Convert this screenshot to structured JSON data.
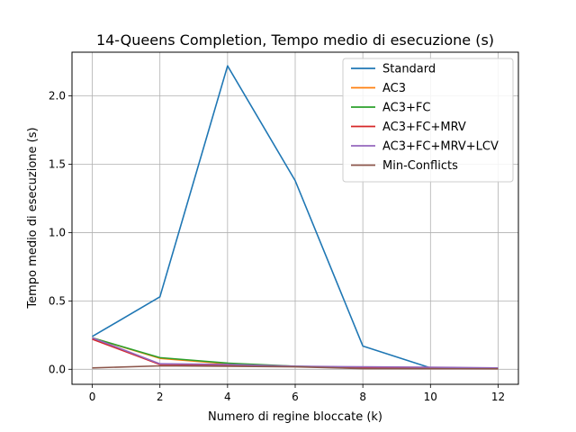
{
  "chart_data": {
    "type": "line",
    "title": "14-Queens Completion, Tempo medio di esecuzione (s)",
    "xlabel": "Numero di regine bloccate (k)",
    "ylabel": "Tempo medio di esecuzione (s)",
    "x": [
      0,
      2,
      4,
      6,
      8,
      10,
      12
    ],
    "xlim": [
      -0.6,
      12.6
    ],
    "ylim": [
      -0.11,
      2.32
    ],
    "xticks": [
      0,
      2,
      4,
      6,
      8,
      10,
      12
    ],
    "yticks": [
      0.0,
      0.5,
      1.0,
      1.5,
      2.0
    ],
    "ytick_labels": [
      "0.0",
      "0.5",
      "1.0",
      "1.5",
      "2.0"
    ],
    "grid": true,
    "legend_position": "top-right",
    "series": [
      {
        "name": "Standard",
        "color": "#1f77b4",
        "values": [
          0.24,
          0.53,
          2.22,
          1.38,
          0.17,
          0.01,
          0.005
        ]
      },
      {
        "name": "AC3",
        "color": "#ff7f0e",
        "values": [
          0.23,
          0.08,
          0.04,
          0.02,
          0.01,
          0.01,
          0.005
        ]
      },
      {
        "name": "AC3+FC",
        "color": "#2ca02c",
        "values": [
          0.23,
          0.085,
          0.045,
          0.022,
          0.012,
          0.01,
          0.005
        ]
      },
      {
        "name": "AC3+FC+MRV",
        "color": "#d62728",
        "values": [
          0.22,
          0.035,
          0.03,
          0.02,
          0.012,
          0.01,
          0.005
        ]
      },
      {
        "name": "AC3+FC+MRV+LCV",
        "color": "#9467bd",
        "values": [
          0.23,
          0.04,
          0.035,
          0.022,
          0.018,
          0.015,
          0.01
        ]
      },
      {
        "name": "Min-Conflicts",
        "color": "#8c564b",
        "values": [
          0.01,
          0.025,
          0.022,
          0.018,
          0.005,
          0.004,
          0.003
        ]
      }
    ]
  }
}
